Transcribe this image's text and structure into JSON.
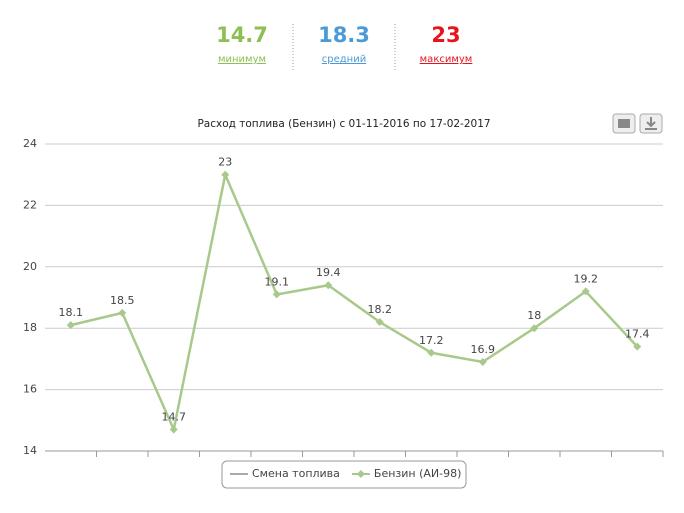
{
  "summary": [
    {
      "value": "14.7",
      "label": "минимум",
      "color": "#8dbf55"
    },
    {
      "value": "18.3",
      "label": "средний",
      "color": "#4a9ad8"
    },
    {
      "value": "23",
      "label": "максимум",
      "color": "#e8141c"
    }
  ],
  "chart_data": {
    "type": "line",
    "title": "Расход топлива (Бензин) с 01-11-2016 по 17-02-2017",
    "categories": [
      null,
      null,
      null,
      null,
      null,
      null,
      null,
      null,
      null,
      null,
      null,
      null
    ],
    "series": [
      {
        "name": "Смена топлива",
        "color": "#aaaaaa",
        "values": [
          null,
          null,
          null,
          null,
          null,
          null,
          null,
          null,
          null,
          null,
          null,
          null
        ]
      },
      {
        "name": "Бензин (АИ-98)",
        "color": "#a9c98c",
        "values": [
          18.1,
          18.5,
          14.7,
          23,
          19.1,
          19.4,
          18.2,
          17.2,
          16.9,
          18,
          19.2,
          17.4
        ]
      }
    ],
    "ylim": [
      14,
      24
    ],
    "yticks": [
      14,
      16,
      18,
      20,
      22,
      24
    ],
    "grid": true
  }
}
